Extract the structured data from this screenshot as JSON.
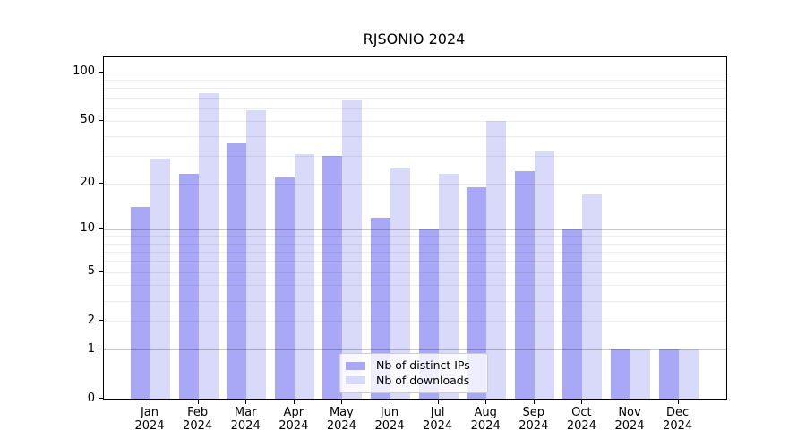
{
  "chart_data": {
    "type": "bar",
    "title": "RJSONIO 2024",
    "categories": [
      "Jan 2024",
      "Feb 2024",
      "Mar 2024",
      "Apr 2024",
      "May 2024",
      "Jun 2024",
      "Jul 2024",
      "Aug 2024",
      "Sep 2024",
      "Oct 2024",
      "Nov 2024",
      "Dec 2024"
    ],
    "x_tick_top_lines": [
      "Jan",
      "Feb",
      "Mar",
      "Apr",
      "May",
      "Jun",
      "Jul",
      "Aug",
      "Sep",
      "Oct",
      "Nov",
      "Dec"
    ],
    "x_tick_bottom_line": "2024",
    "series": [
      {
        "name": "Nb of distinct IPs",
        "color": "#a8a8f7",
        "values": [
          14,
          23,
          36,
          22,
          30,
          12,
          10,
          19,
          24,
          10,
          1,
          1
        ]
      },
      {
        "name": "Nb of downloads",
        "color": "#d9d9f9",
        "values": [
          29,
          74,
          58,
          31,
          67,
          25,
          23,
          50,
          32,
          17,
          1,
          1
        ]
      }
    ],
    "y_ticks": [
      0,
      1,
      2,
      5,
      10,
      20,
      50,
      100
    ],
    "major_gridlines": [
      1,
      10,
      100
    ],
    "minor_gridlines": [
      2,
      3,
      4,
      5,
      6,
      7,
      8,
      9,
      20,
      30,
      40,
      50,
      60,
      70,
      80,
      90
    ],
    "scale": "log1p",
    "ylim": [
      0,
      124
    ],
    "grid": true,
    "legend_position": "lower center",
    "xlabel": "",
    "ylabel": ""
  }
}
